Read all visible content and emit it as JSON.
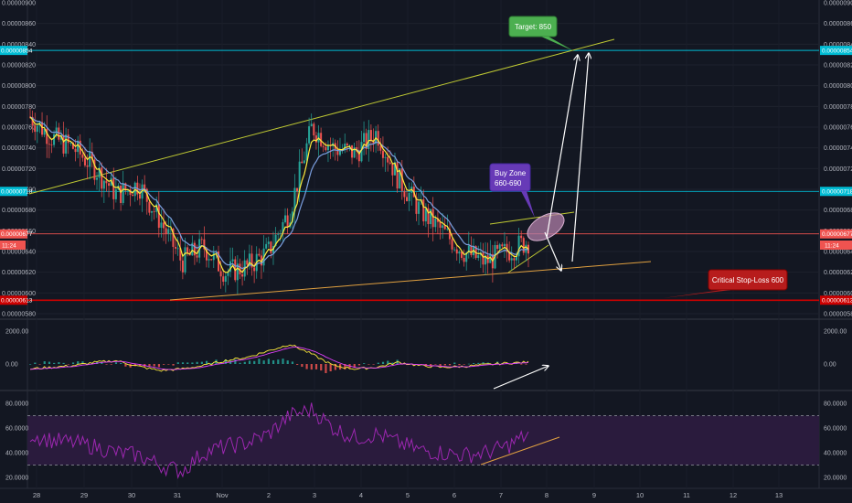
{
  "chart_data": {
    "type": "candlestick",
    "x_ticks": [
      "28",
      "29",
      "30",
      "31",
      "Nov",
      "2",
      "3",
      "4",
      "5",
      "6",
      "7",
      "8",
      "9",
      "10",
      "11",
      "12",
      "13"
    ],
    "x_ticks_left_edge": "0.000000900",
    "price_ticks": [
      "0.00000860",
      "0.00000840",
      "0.00000820",
      "0.00000800",
      "0.00000780",
      "0.00000760",
      "0.00000740",
      "0.00000720",
      "0.00000700",
      "0.00000680",
      "0.00000660",
      "0.00000640",
      "0.00000620",
      "0.00000600",
      "0.00000580"
    ],
    "top_tick": "0.00000900",
    "price_ylim": [
      6e-06,
      9e-06
    ],
    "price_tags": [
      {
        "label": "0.00000854",
        "value": 8.54e-06,
        "color": "#00bcd4"
      },
      {
        "label": "0.00000718",
        "value": 7.18e-06,
        "color": "#00bcd4"
      },
      {
        "label": "0.00000677",
        "value": 6.77e-06,
        "color": "#ef5350"
      },
      {
        "label": "0.00000613",
        "value": 6.13e-06,
        "color": "#cc0000"
      }
    ],
    "timer": "11:24",
    "candles_close_approx": [
      7.9e-06,
      7.7e-06,
      7.6e-06,
      7.4e-06,
      7.15e-06,
      7.25e-06,
      6.9e-06,
      6.5e-06,
      6.65e-06,
      6.4e-06,
      6.45e-06,
      6.6e-06,
      7e-06,
      7.8e-06,
      7.6e-06,
      7.55e-06,
      7.75e-06,
      7.3e-06,
      7e-06,
      6.8e-06,
      6.6e-06,
      6.5e-06,
      6.6e-06,
      6.7e-06
    ],
    "annotations": [
      {
        "text": "Target: 850",
        "color": "#4caf50"
      },
      {
        "text": "Buy Zone",
        "text2": "660-690",
        "color": "#673ab7"
      },
      {
        "text": "Critical Stop-Loss 600",
        "color": "#b71c1c"
      }
    ],
    "macd": {
      "ticks": [
        "2000.00",
        "0.00"
      ],
      "ylim": [
        -1500,
        2500
      ],
      "hist": [
        -300,
        -200,
        -100,
        100,
        200,
        -150,
        -400,
        -300,
        -100,
        200,
        400,
        800,
        1200,
        600,
        -100,
        -300,
        -200,
        100,
        -100,
        -200,
        -150,
        -50,
        50,
        100
      ]
    },
    "rsi": {
      "ticks": [
        "80.0000",
        "60.0000",
        "40.0000",
        "20.0000"
      ],
      "ylim": [
        15,
        90
      ],
      "bands": [
        70,
        30
      ],
      "values": [
        55,
        50,
        48,
        45,
        40,
        38,
        30,
        25,
        40,
        45,
        48,
        55,
        70,
        75,
        60,
        52,
        55,
        48,
        42,
        40,
        38,
        40,
        45,
        55
      ]
    },
    "colors": {
      "background": "#131722",
      "up": "#26a69a",
      "down": "#ef5350",
      "ema_fast": "#ffeb3b",
      "ema_slow": "#7b9fe0",
      "trend_upper": "#c0ca33",
      "trend_lower": "#e0a040",
      "rsi_line": "#9c27b0",
      "rsi_band": "#2a1b3d"
    }
  }
}
